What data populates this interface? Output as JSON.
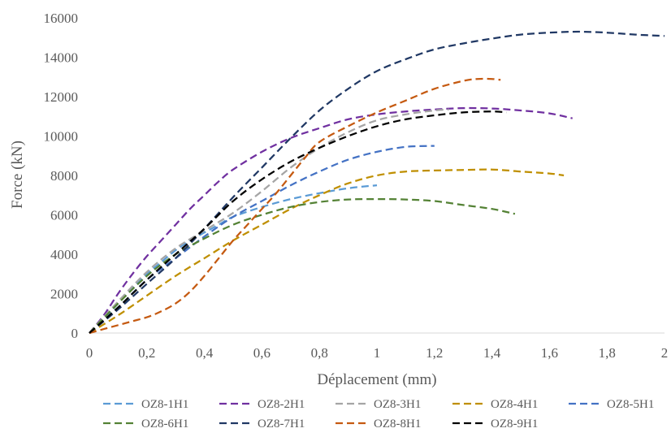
{
  "chart_data": {
    "type": "line",
    "title": "",
    "xlabel": "Déplacement (mm)",
    "ylabel": "Force (kN)",
    "xlim": [
      0,
      2
    ],
    "ylim": [
      0,
      16000
    ],
    "x_ticks": [
      0,
      0.2,
      0.4,
      0.6,
      0.8,
      1,
      1.2,
      1.4,
      1.6,
      1.8,
      2
    ],
    "x_tick_labels": [
      "0",
      "0,2",
      "0,4",
      "0,6",
      "0,8",
      "1",
      "1,2",
      "1,4",
      "1,6",
      "1,8",
      "2"
    ],
    "y_ticks": [
      0,
      2000,
      4000,
      6000,
      8000,
      10000,
      12000,
      14000,
      16000
    ],
    "y_tick_labels": [
      "0",
      "2000",
      "4000",
      "6000",
      "8000",
      "10000",
      "12000",
      "14000",
      "16000"
    ],
    "grid": false,
    "legend_position": "bottom",
    "line_style": "dashed",
    "series": [
      {
        "name": "OZ8-1H1",
        "color": "#5B9BD5",
        "points": [
          [
            0,
            0
          ],
          [
            0.05,
            700
          ],
          [
            0.1,
            1500
          ],
          [
            0.15,
            2300
          ],
          [
            0.2,
            3000
          ],
          [
            0.25,
            3600
          ],
          [
            0.3,
            4200
          ],
          [
            0.35,
            4700
          ],
          [
            0.4,
            5100
          ],
          [
            0.45,
            5500
          ],
          [
            0.5,
            5900
          ],
          [
            0.6,
            6400
          ],
          [
            0.7,
            6800
          ],
          [
            0.8,
            7100
          ],
          [
            0.9,
            7350
          ],
          [
            1.0,
            7500
          ]
        ]
      },
      {
        "name": "OZ8-2H1",
        "color": "#7030A0",
        "points": [
          [
            0,
            0
          ],
          [
            0.05,
            900
          ],
          [
            0.1,
            2000
          ],
          [
            0.15,
            3000
          ],
          [
            0.2,
            3900
          ],
          [
            0.25,
            4700
          ],
          [
            0.3,
            5500
          ],
          [
            0.35,
            6300
          ],
          [
            0.4,
            7000
          ],
          [
            0.45,
            7700
          ],
          [
            0.5,
            8300
          ],
          [
            0.6,
            9200
          ],
          [
            0.7,
            9900
          ],
          [
            0.8,
            10400
          ],
          [
            0.9,
            10850
          ],
          [
            1.0,
            11100
          ],
          [
            1.1,
            11250
          ],
          [
            1.2,
            11350
          ],
          [
            1.3,
            11420
          ],
          [
            1.4,
            11400
          ],
          [
            1.5,
            11300
          ],
          [
            1.6,
            11150
          ],
          [
            1.68,
            10900
          ]
        ]
      },
      {
        "name": "OZ8-3H1",
        "color": "#A5A5A5",
        "points": [
          [
            0,
            0
          ],
          [
            0.1,
            1600
          ],
          [
            0.2,
            3100
          ],
          [
            0.3,
            4300
          ],
          [
            0.4,
            5200
          ],
          [
            0.5,
            6100
          ],
          [
            0.6,
            7200
          ],
          [
            0.7,
            8400
          ],
          [
            0.8,
            9400
          ],
          [
            0.9,
            10200
          ],
          [
            1.0,
            10800
          ],
          [
            1.1,
            11100
          ],
          [
            1.2,
            11300
          ],
          [
            1.25,
            11350
          ]
        ]
      },
      {
        "name": "OZ8-4H1",
        "color": "#BF8F00",
        "points": [
          [
            0,
            0
          ],
          [
            0.1,
            900
          ],
          [
            0.2,
            1900
          ],
          [
            0.3,
            2900
          ],
          [
            0.4,
            3800
          ],
          [
            0.5,
            4700
          ],
          [
            0.6,
            5500
          ],
          [
            0.7,
            6300
          ],
          [
            0.8,
            7000
          ],
          [
            0.9,
            7600
          ],
          [
            1.0,
            8000
          ],
          [
            1.1,
            8200
          ],
          [
            1.2,
            8250
          ],
          [
            1.3,
            8280
          ],
          [
            1.4,
            8300
          ],
          [
            1.5,
            8200
          ],
          [
            1.6,
            8100
          ],
          [
            1.65,
            8000
          ]
        ]
      },
      {
        "name": "OZ8-5H1",
        "color": "#4472C4",
        "points": [
          [
            0,
            0
          ],
          [
            0.1,
            1300
          ],
          [
            0.2,
            2700
          ],
          [
            0.3,
            3800
          ],
          [
            0.4,
            4900
          ],
          [
            0.5,
            5900
          ],
          [
            0.6,
            6700
          ],
          [
            0.7,
            7500
          ],
          [
            0.8,
            8200
          ],
          [
            0.9,
            8800
          ],
          [
            1.0,
            9200
          ],
          [
            1.1,
            9450
          ],
          [
            1.2,
            9500
          ]
        ]
      },
      {
        "name": "OZ8-6H1",
        "color": "#548235",
        "points": [
          [
            0,
            0
          ],
          [
            0.1,
            1500
          ],
          [
            0.2,
            2900
          ],
          [
            0.3,
            4000
          ],
          [
            0.4,
            4800
          ],
          [
            0.5,
            5500
          ],
          [
            0.6,
            6000
          ],
          [
            0.7,
            6400
          ],
          [
            0.8,
            6650
          ],
          [
            0.9,
            6780
          ],
          [
            1.0,
            6800
          ],
          [
            1.1,
            6780
          ],
          [
            1.2,
            6700
          ],
          [
            1.3,
            6500
          ],
          [
            1.4,
            6300
          ],
          [
            1.48,
            6050
          ]
        ]
      },
      {
        "name": "OZ8-7H1",
        "color": "#203864",
        "points": [
          [
            0,
            0
          ],
          [
            0.1,
            1200
          ],
          [
            0.2,
            2500
          ],
          [
            0.3,
            3800
          ],
          [
            0.4,
            5300
          ],
          [
            0.5,
            6900
          ],
          [
            0.6,
            8400
          ],
          [
            0.7,
            9900
          ],
          [
            0.8,
            11300
          ],
          [
            0.9,
            12400
          ],
          [
            1.0,
            13300
          ],
          [
            1.1,
            13900
          ],
          [
            1.2,
            14400
          ],
          [
            1.3,
            14700
          ],
          [
            1.4,
            14950
          ],
          [
            1.5,
            15150
          ],
          [
            1.6,
            15250
          ],
          [
            1.7,
            15300
          ],
          [
            1.8,
            15250
          ],
          [
            1.9,
            15150
          ],
          [
            2.0,
            15080
          ]
        ]
      },
      {
        "name": "OZ8-8H1",
        "color": "#C55A11",
        "points": [
          [
            0,
            0
          ],
          [
            0.05,
            200
          ],
          [
            0.1,
            400
          ],
          [
            0.15,
            600
          ],
          [
            0.2,
            800
          ],
          [
            0.25,
            1100
          ],
          [
            0.3,
            1500
          ],
          [
            0.35,
            2100
          ],
          [
            0.4,
            2900
          ],
          [
            0.45,
            3800
          ],
          [
            0.5,
            4700
          ],
          [
            0.55,
            5500
          ],
          [
            0.6,
            6300
          ],
          [
            0.65,
            7100
          ],
          [
            0.7,
            8000
          ],
          [
            0.75,
            8900
          ],
          [
            0.8,
            9700
          ],
          [
            0.9,
            10500
          ],
          [
            1.0,
            11200
          ],
          [
            1.1,
            11800
          ],
          [
            1.2,
            12400
          ],
          [
            1.3,
            12800
          ],
          [
            1.35,
            12900
          ],
          [
            1.4,
            12900
          ],
          [
            1.43,
            12850
          ]
        ]
      },
      {
        "name": "OZ8-9H1",
        "color": "#000000",
        "points": [
          [
            0,
            0
          ],
          [
            0.1,
            1300
          ],
          [
            0.2,
            2700
          ],
          [
            0.3,
            4000
          ],
          [
            0.4,
            5300
          ],
          [
            0.5,
            6700
          ],
          [
            0.6,
            7800
          ],
          [
            0.7,
            8700
          ],
          [
            0.8,
            9400
          ],
          [
            0.9,
            10000
          ],
          [
            1.0,
            10500
          ],
          [
            1.1,
            10850
          ],
          [
            1.2,
            11050
          ],
          [
            1.3,
            11200
          ],
          [
            1.4,
            11250
          ],
          [
            1.45,
            11200
          ]
        ]
      }
    ]
  }
}
